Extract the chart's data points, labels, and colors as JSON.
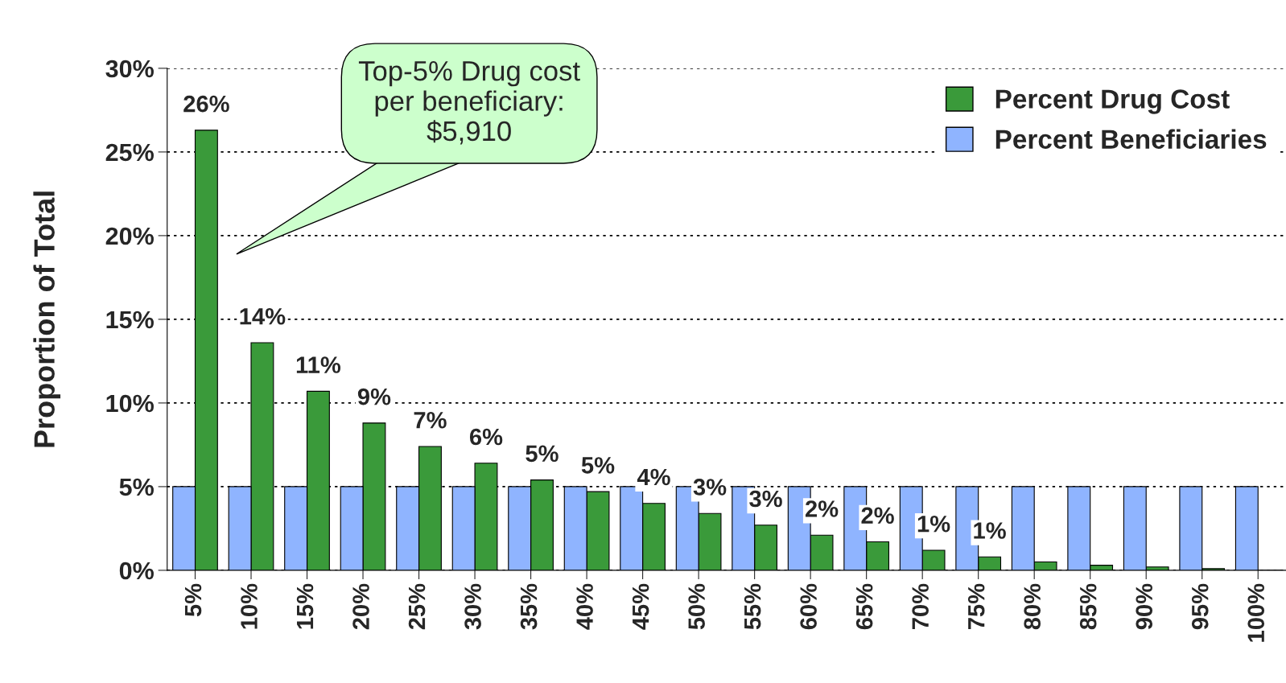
{
  "chart_data": {
    "type": "bar",
    "ylabel": "Proportion of Total",
    "categories": [
      "5%",
      "10%",
      "15%",
      "20%",
      "25%",
      "30%",
      "35%",
      "40%",
      "45%",
      "50%",
      "55%",
      "60%",
      "65%",
      "70%",
      "75%",
      "80%",
      "85%",
      "90%",
      "95%",
      "100%"
    ],
    "series": [
      {
        "name": "Percent Drug Cost",
        "color": "#3a9a3a",
        "values": [
          26.3,
          13.6,
          10.7,
          8.8,
          7.4,
          6.4,
          5.4,
          4.7,
          4.0,
          3.4,
          2.7,
          2.1,
          1.7,
          1.2,
          0.8,
          0.5,
          0.3,
          0.2,
          0.1,
          0
        ],
        "value_labels": [
          "26%",
          "14%",
          "11%",
          "9%",
          "7%",
          "6%",
          "5%",
          "5%",
          "4%",
          "3%",
          "3%",
          "2%",
          "2%",
          "1%",
          "1%",
          null,
          null,
          null,
          null,
          null
        ]
      },
      {
        "name": "Percent Beneficiaries",
        "color": "#8fb4ff",
        "values": [
          5,
          5,
          5,
          5,
          5,
          5,
          5,
          5,
          5,
          5,
          5,
          5,
          5,
          5,
          5,
          5,
          5,
          5,
          5,
          5
        ]
      }
    ],
    "ylim": [
      0,
      30
    ],
    "yticks": [
      {
        "value": 0,
        "label": "0%"
      },
      {
        "value": 5,
        "label": "5%"
      },
      {
        "value": 10,
        "label": "10%"
      },
      {
        "value": 15,
        "label": "15%"
      },
      {
        "value": 20,
        "label": "20%"
      },
      {
        "value": 25,
        "label": "25%"
      },
      {
        "value": 30,
        "label": "30%"
      }
    ],
    "grid": "y",
    "legend": "top right",
    "annotations": [
      "Top-5% Drug cost\nper beneficiary:\n$5,910"
    ]
  }
}
